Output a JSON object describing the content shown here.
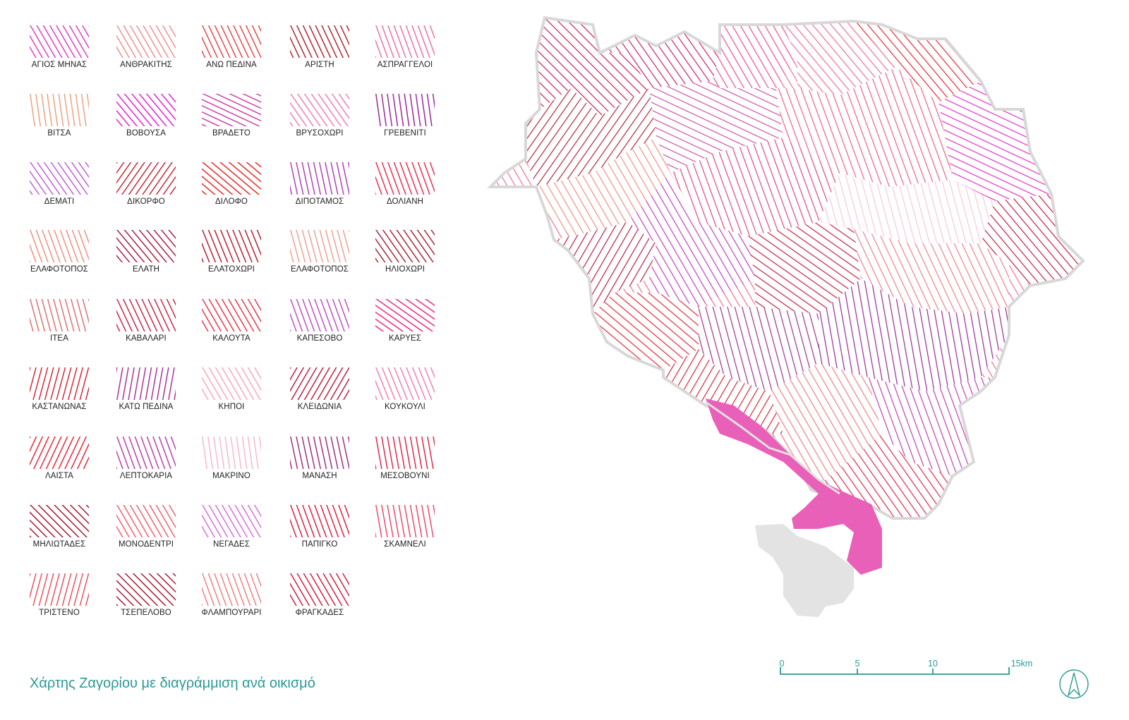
{
  "caption": "Χάρτης Ζαγορίου με διαγράμμιση ανά οικισμό",
  "legend": [
    {
      "name": "ΑΓΙΟΣ ΜΗΝΑΣ",
      "color": "#e040c0",
      "angle": -30
    },
    {
      "name": "ΑΝΘΡΑΚΙΤΗΣ",
      "color": "#f09090",
      "angle": -30
    },
    {
      "name": "ΑΝΩ ΠΕΔΙΝΑ",
      "color": "#e84848",
      "angle": -25
    },
    {
      "name": "ΑΡΙΣΤΗ",
      "color": "#b02830",
      "angle": -25
    },
    {
      "name": "ΑΣΠΡΑΓΓΕΛΟΙ",
      "color": "#f070a0",
      "angle": -20
    },
    {
      "name": "ΒΙΤΣΑ",
      "color": "#f0a080",
      "angle": -8
    },
    {
      "name": "ΒΟΒΟΥΣΑ",
      "color": "#e820d0",
      "angle": -40
    },
    {
      "name": "ΒΡΑΔΕΤΟ",
      "color": "#d040a8",
      "angle": -65
    },
    {
      "name": "ΒΡΥΣΟΧΩΡΙ",
      "color": "#f080a8",
      "angle": -35
    },
    {
      "name": "ΓΡΕΒΕΝΙΤΙ",
      "color": "#9a2898",
      "angle": -8
    },
    {
      "name": "ΔΕΜΑΤΙ",
      "color": "#c060d8",
      "angle": -35
    },
    {
      "name": "ΔΙΚΟΡΦΟ",
      "color": "#c82838",
      "angle": 35
    },
    {
      "name": "ΔΙΛΟΦΟ",
      "color": "#e82828",
      "angle": -50
    },
    {
      "name": "ΔΙΠΟΤΑΜΟΣ",
      "color": "#b040b8",
      "angle": -12
    },
    {
      "name": "ΔΟΛΙΑΝΗ",
      "color": "#e83050",
      "angle": -20
    },
    {
      "name": "ΕΛΑΦΟΤΟΠΟΣ",
      "color": "#f09080",
      "angle": -20
    },
    {
      "name": "ΕΛΑΤΗ",
      "color": "#a82040",
      "angle": -40
    },
    {
      "name": "ΕΛΑΤΟΧΩΡΙ",
      "color": "#b82030",
      "angle": -22
    },
    {
      "name": "ΕΛΑΦΟΤΟΠΟΣ",
      "color": "#f0a090",
      "angle": -15
    },
    {
      "name": "ΗΛΙΟΧΩΡΙ",
      "color": "#a82838",
      "angle": -35
    },
    {
      "name": "ΙΤΕΑ",
      "color": "#e07070",
      "angle": -15
    },
    {
      "name": "ΚΑΒΑΛΑΡΙ",
      "color": "#c82848",
      "angle": -25
    },
    {
      "name": "ΚΑΛΟΥΤΑ",
      "color": "#e83848",
      "angle": -30
    },
    {
      "name": "ΚΑΠΕΣΟΒΟ",
      "color": "#c050c0",
      "angle": -20
    },
    {
      "name": "ΚΑΡΥΕΣ",
      "color": "#f02880",
      "angle": -55
    },
    {
      "name": "ΚΑΣΤΑΝΩΝΑΣ",
      "color": "#d82838",
      "angle": 15
    },
    {
      "name": "ΚΑΤΩ ΠΕΔΙΝΑ",
      "color": "#b03098",
      "angle": 10
    },
    {
      "name": "ΚΗΠΟΙ",
      "color": "#f8a8b8",
      "angle": -30
    },
    {
      "name": "ΚΛΕΙΔΩΝΙΑ",
      "color": "#c02040",
      "angle": 30
    },
    {
      "name": "ΚΟΥΚΟΥΛΙ",
      "color": "#f080b0",
      "angle": -22
    },
    {
      "name": "ΛΑΙΣΤΑ",
      "color": "#e82838",
      "angle": 25
    },
    {
      "name": "ΛΕΠΤΟΚΑΡΙΑ",
      "color": "#b840a8",
      "angle": -20
    },
    {
      "name": "ΜΑΚΡΙΝΟ",
      "color": "#f8b8d0",
      "angle": -8
    },
    {
      "name": "ΜΑΝΑΣΗ",
      "color": "#a03080",
      "angle": -12
    },
    {
      "name": "ΜΕΣΟΒΟΥΝΙ",
      "color": "#e02848",
      "angle": -10
    },
    {
      "name": "ΜΗΛΙΩΤΑΔΕΣ",
      "color": "#a81830",
      "angle": -45
    },
    {
      "name": "ΜΟΝΟΔΕΝΤΡΙ",
      "color": "#f06070",
      "angle": -30
    },
    {
      "name": "ΝΕΓΑΔΕΣ",
      "color": "#d870d8",
      "angle": -30
    },
    {
      "name": "ΠΑΠΙΓΚΟ",
      "color": "#e02040",
      "angle": -20
    },
    {
      "name": "ΣΚΑΜΝΕΛΙ",
      "color": "#f04868",
      "angle": -10
    },
    {
      "name": "ΤΡΙΣΤΕΝΟ",
      "color": "#f05060",
      "angle": 15
    },
    {
      "name": "ΤΣΕΠΕΛΟΒΟ",
      "color": "#b01830",
      "angle": -45
    },
    {
      "name": "ΦΛΑΜΠΟΥΡΑΡΙ",
      "color": "#f08080",
      "angle": -20
    },
    {
      "name": "ΦΡΑΓΚΑΔΕΣ",
      "color": "#d02040",
      "angle": -30
    }
  ],
  "map": {
    "highlight_color": "#e860b8",
    "lake_color": "#e3e3e3",
    "boundary_color": "#d8d8d8"
  },
  "scale": {
    "ticks": [
      "0",
      "5",
      "10",
      "15km"
    ],
    "color": "#2a9a95"
  },
  "north_arrow_icon": "north-arrow-icon"
}
